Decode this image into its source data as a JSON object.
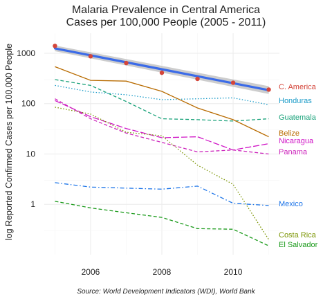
{
  "chart_data": {
    "type": "line",
    "title": [
      "Malaria Prevalence in Central America",
      "Cases per 100,000 People (2005 - 2011)"
    ],
    "ylabel": "log Reported Confirmed Cases per 100,000 People",
    "xlabel": "",
    "caption": "Source: World Development Indicators (WDI), World Bank",
    "y_scale": "log10",
    "ylim": [
      0.1,
      2500
    ],
    "xlim": [
      2004.7,
      2011.3
    ],
    "x_ticks": [
      2006,
      2008,
      2010
    ],
    "y_ticks": [
      1,
      10,
      100,
      1000
    ],
    "y_tick_labels": [
      "1",
      "10",
      "100",
      "1000"
    ],
    "grid": true,
    "legend": "direct labels at line ends (right)",
    "x": [
      2005,
      2006,
      2007,
      2008,
      2009,
      2010,
      2011
    ],
    "series": [
      {
        "name": "C. America",
        "color": "#d4453a",
        "style": "points",
        "values": [
          1400,
          870,
          640,
          410,
          310,
          260,
          190
        ]
      },
      {
        "name": "Honduras",
        "color": "#1a9bc8",
        "style": "dotted",
        "values": [
          230,
          170,
          150,
          120,
          125,
          130,
          95
        ]
      },
      {
        "name": "Guatemala",
        "color": "#1aa27a",
        "style": "dashed",
        "values": [
          300,
          230,
          110,
          50,
          48,
          45,
          50
        ]
      },
      {
        "name": "Belize",
        "color": "#b86b00",
        "style": "solid",
        "values": [
          540,
          290,
          280,
          175,
          82,
          48,
          22
        ]
      },
      {
        "name": "Nicaragua",
        "color": "#d015c6",
        "style": "longdash",
        "values": [
          115,
          55,
          32,
          21,
          22,
          12,
          16
        ]
      },
      {
        "name": "Panama",
        "color": "#cc22bb",
        "style": "dashed",
        "values": [
          125,
          50,
          26,
          17,
          11,
          12,
          10
        ]
      },
      {
        "name": "Mexico",
        "color": "#1a73e8",
        "style": "dashdot",
        "values": [
          2.7,
          2.2,
          2.1,
          2.0,
          2.3,
          1.05,
          0.95
        ]
      },
      {
        "name": "Costa Rica",
        "color": "#7a9400",
        "style": "dotted",
        "values": [
          85,
          62,
          27,
          23,
          6,
          2.5,
          0.2
        ]
      },
      {
        "name": "El Salvador",
        "color": "#1a9a1a",
        "style": "dashed",
        "values": [
          1.15,
          0.85,
          0.68,
          0.55,
          0.33,
          0.32,
          0.15
        ]
      }
    ],
    "trend": {
      "color": "#3b6be8",
      "band_color": "#bcbcbc",
      "values_start": 1250,
      "values_end": 185
    }
  }
}
